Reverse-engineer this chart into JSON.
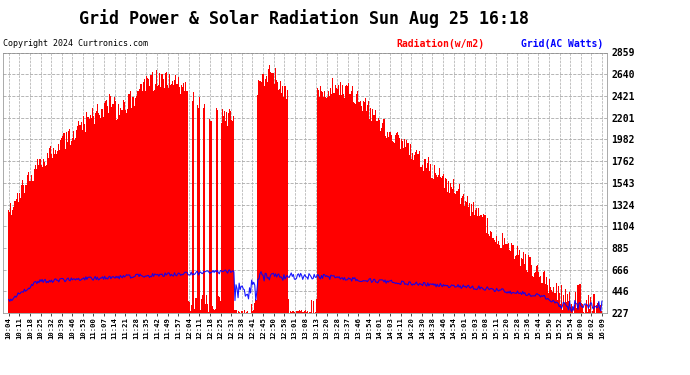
{
  "title": "Grid Power & Solar Radiation Sun Aug 25 16:18",
  "copyright": "Copyright 2024 Curtronics.com",
  "legend_radiation": "Radiation(w/m2)",
  "legend_grid": "Grid(AC Watts)",
  "y_ticks": [
    227.0,
    446.4,
    665.7,
    885.1,
    1104.4,
    1323.8,
    1543.2,
    1762.5,
    1981.9,
    2201.3,
    2420.6,
    2640.0,
    2859.3
  ],
  "y_min": 227.0,
  "y_max": 2859.3,
  "radiation_color": "#FF0000",
  "grid_color": "#0000FF",
  "background_color": "#FFFFFF",
  "plot_bg_color": "#FFFFFF",
  "title_fontsize": 12,
  "x_labels": [
    "10:04",
    "10:11",
    "10:18",
    "10:25",
    "10:32",
    "10:39",
    "10:46",
    "10:53",
    "11:00",
    "11:07",
    "11:14",
    "11:21",
    "11:28",
    "11:35",
    "11:42",
    "11:49",
    "11:57",
    "12:04",
    "12:11",
    "12:18",
    "12:25",
    "12:31",
    "12:38",
    "12:41",
    "12:45",
    "12:50",
    "12:58",
    "13:01",
    "13:08",
    "13:13",
    "13:20",
    "13:28",
    "13:37",
    "13:46",
    "13:54",
    "14:01",
    "14:03",
    "14:11",
    "14:20",
    "14:30",
    "14:38",
    "14:46",
    "14:54",
    "15:01",
    "15:03",
    "15:08",
    "15:11",
    "15:20",
    "15:28",
    "15:36",
    "15:44",
    "15:50",
    "15:52",
    "15:54",
    "16:00",
    "16:02",
    "16:09"
  ],
  "n_fine": 570
}
